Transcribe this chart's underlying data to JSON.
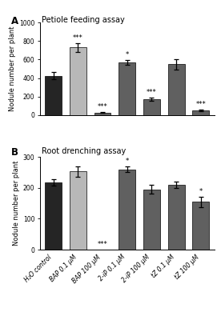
{
  "panel_A_title": "Petiole feeding assay",
  "panel_B_title": "Root drenching assay",
  "ylabel": "Nodule number per plant",
  "categories": [
    "H₂O control",
    "BAP 0.1 μM",
    "BAP 100 μM",
    "2-iP 0.1 μM",
    "2-iP 100 μM",
    "tZ 0.1 μM",
    "tZ 100 μM"
  ],
  "panel_A_values": [
    425,
    730,
    28,
    570,
    172,
    548,
    52
  ],
  "panel_A_errors": [
    38,
    48,
    6,
    28,
    18,
    55,
    10
  ],
  "panel_A_ylim": [
    0,
    1000
  ],
  "panel_A_yticks": [
    0,
    200,
    400,
    600,
    800,
    1000
  ],
  "panel_B_values": [
    217,
    253,
    0,
    260,
    195,
    210,
    155
  ],
  "panel_B_errors": [
    11,
    17,
    0,
    9,
    14,
    11,
    17
  ],
  "panel_B_ylim": [
    0,
    300
  ],
  "panel_B_yticks": [
    0,
    100,
    200,
    300
  ],
  "bar_colors_A": [
    "#252525",
    "#b8b8b8",
    "#606060",
    "#606060",
    "#606060",
    "#606060",
    "#606060"
  ],
  "bar_colors_B": [
    "#252525",
    "#b8b8b8",
    "#606060",
    "#606060",
    "#606060",
    "#606060",
    "#606060"
  ],
  "panel_A_significance": [
    "",
    "***",
    "***",
    "*",
    "***",
    "",
    "***"
  ],
  "panel_B_significance": [
    "",
    "",
    "***",
    "*",
    "",
    "",
    "*"
  ],
  "background_color": "#ffffff",
  "label_fontsize": 6.0,
  "tick_fontsize": 5.5,
  "title_fontsize": 7.0,
  "panel_label_fontsize": 8.5,
  "sig_fontsize": 6.0
}
